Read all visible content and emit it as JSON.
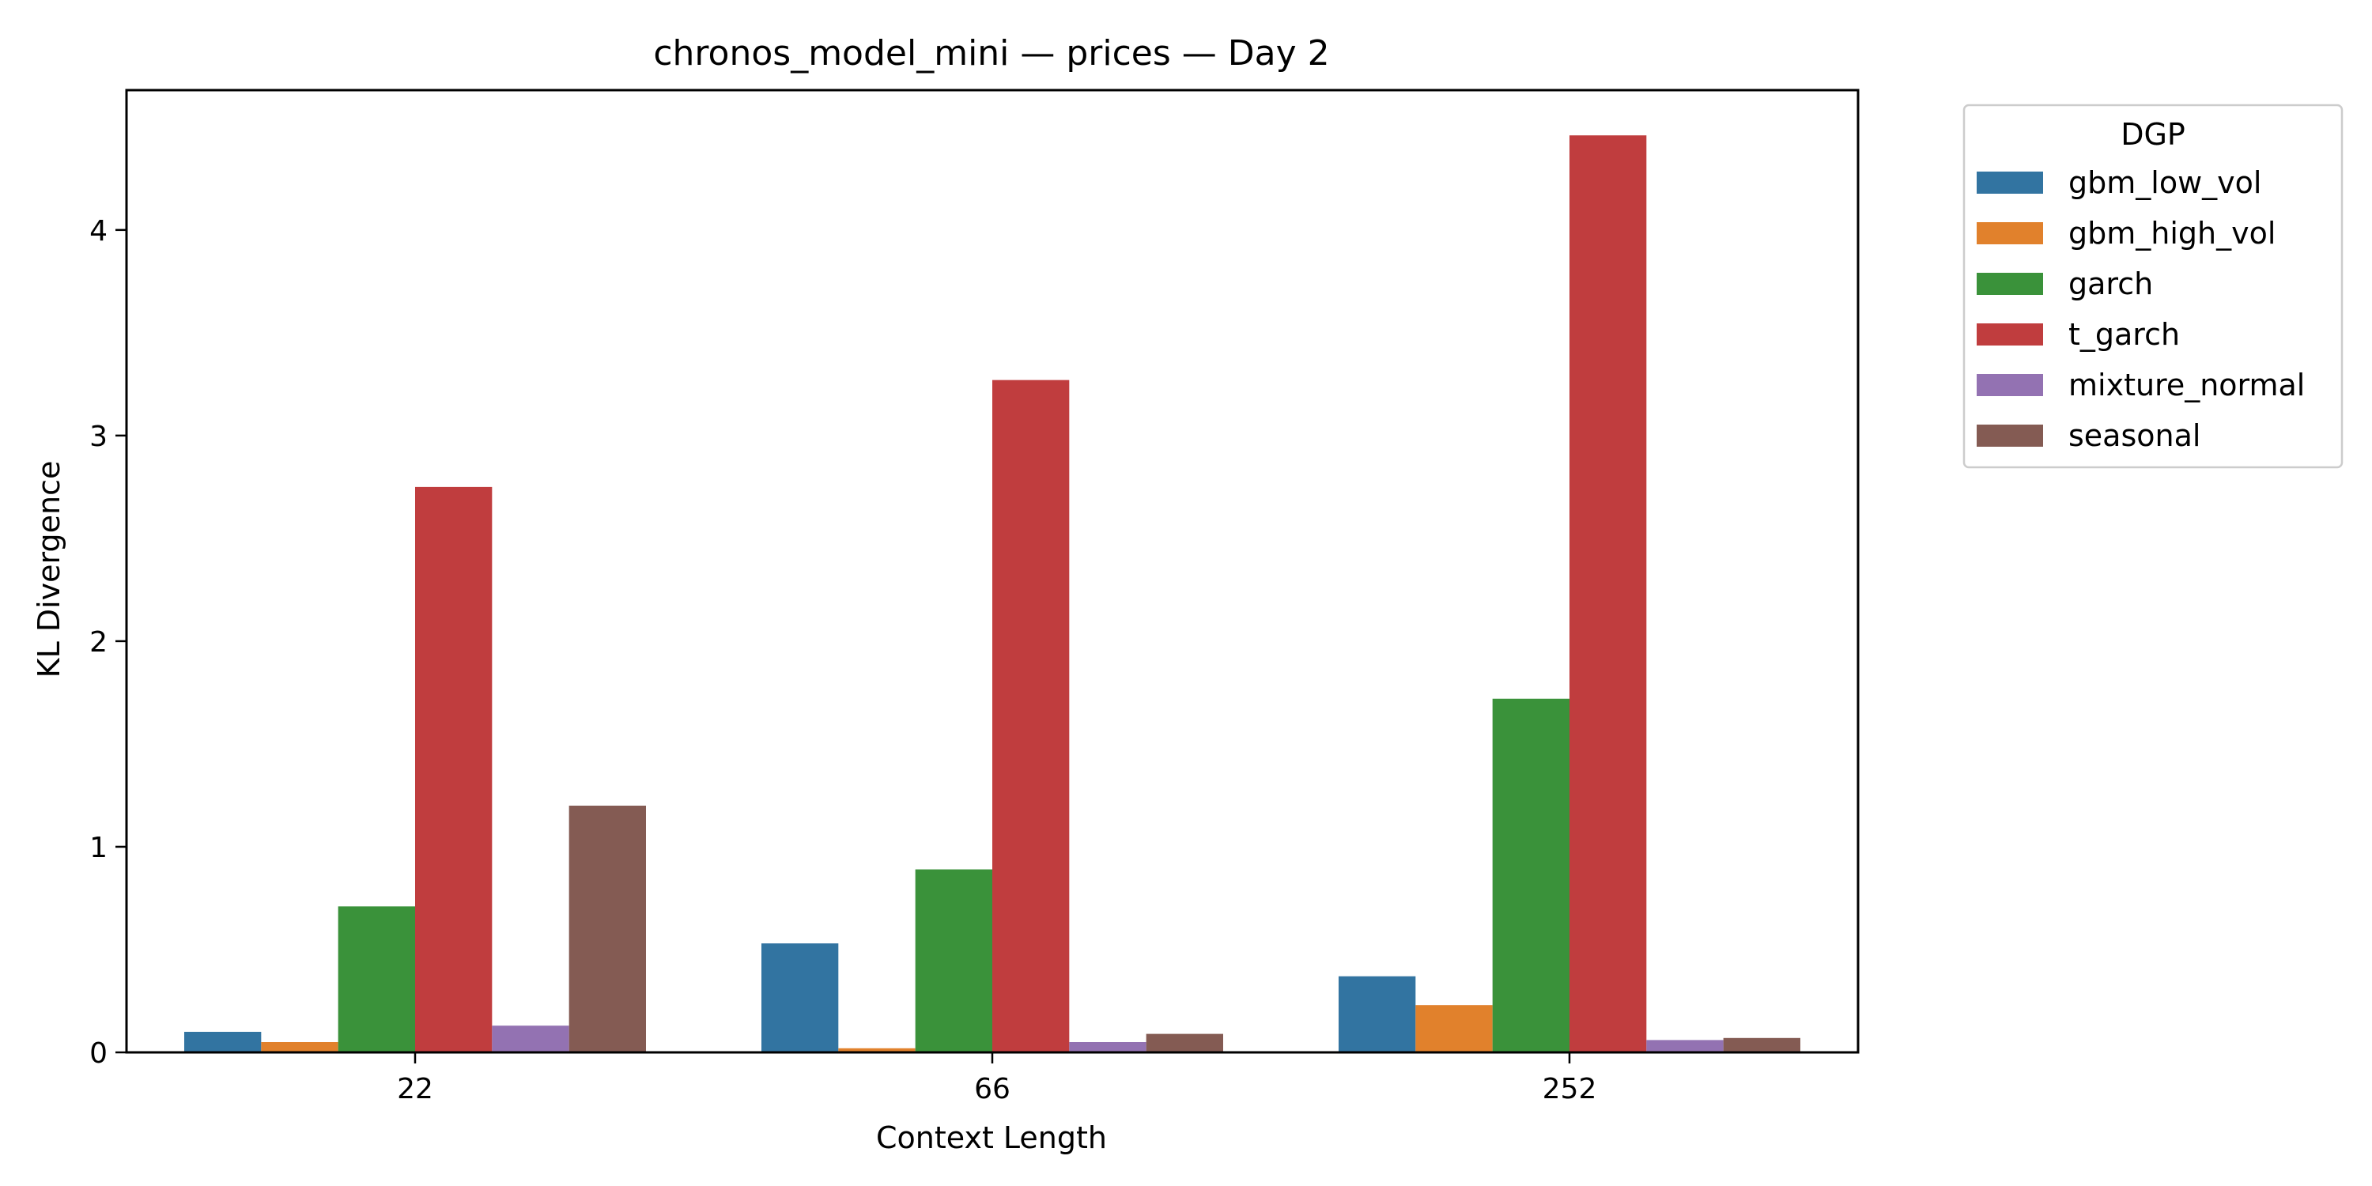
{
  "chart_data": {
    "type": "bar",
    "title": "chronos_model_mini — prices — Day 2",
    "xlabel": "Context Length",
    "ylabel": "KL Divergence",
    "categories": [
      "22",
      "66",
      "252"
    ],
    "ylim": [
      0,
      4.68
    ],
    "yticks": [
      0,
      1,
      2,
      3,
      4
    ],
    "grid": false,
    "legend": {
      "title": "DGP",
      "placement": "upper right, outside plot"
    },
    "series": [
      {
        "name": "gbm_low_vol",
        "color": "#3274a1",
        "values": [
          0.1,
          0.53,
          0.37
        ]
      },
      {
        "name": "gbm_high_vol",
        "color": "#e1812c",
        "values": [
          0.05,
          0.02,
          0.23
        ]
      },
      {
        "name": "garch",
        "color": "#3a923a",
        "values": [
          0.71,
          0.89,
          1.72
        ]
      },
      {
        "name": "t_garch",
        "color": "#c03d3e",
        "values": [
          2.75,
          3.27,
          4.46
        ]
      },
      {
        "name": "mixture_normal",
        "color": "#9372b2",
        "values": [
          0.13,
          0.05,
          0.06
        ]
      },
      {
        "name": "seasonal",
        "color": "#845b53",
        "values": [
          1.2,
          0.09,
          0.07
        ]
      }
    ]
  }
}
